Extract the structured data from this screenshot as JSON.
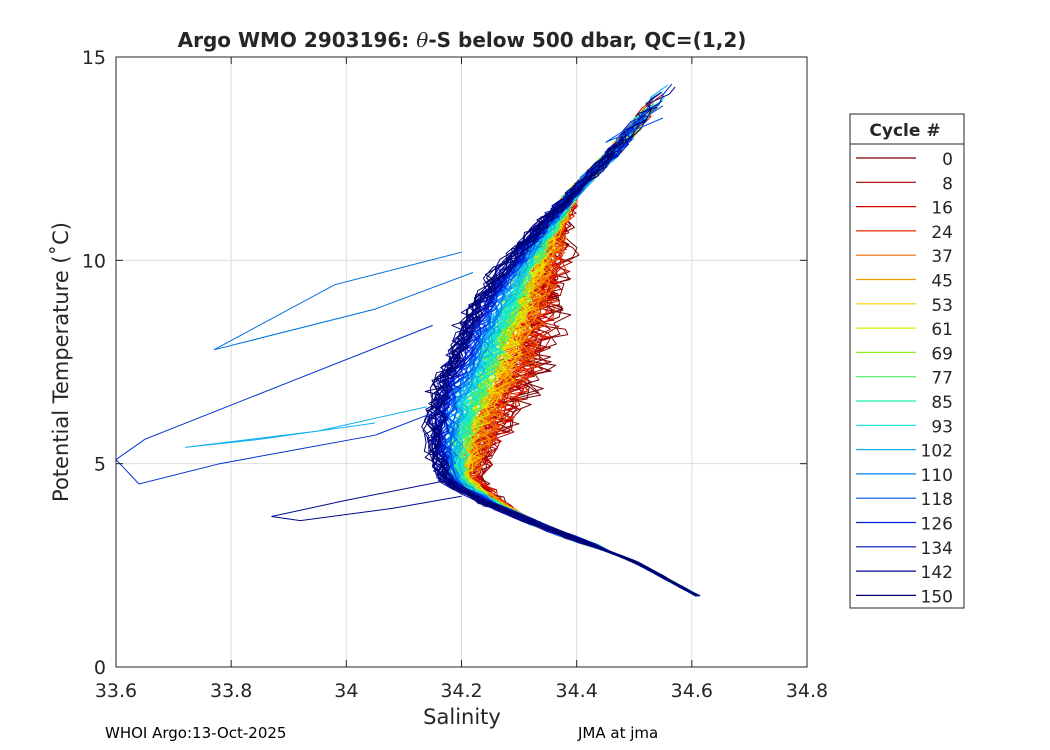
{
  "chart_data": {
    "type": "line",
    "title_prefix": "Argo WMO 2903196: ",
    "title_theta": "θ",
    "title_suffix": "-S below 500 dbar,  QC=(1,2)",
    "xlabel": "Salinity",
    "ylabel": "Potential Temperature (˚C)",
    "xlim": [
      33.6,
      34.8
    ],
    "ylim": [
      0,
      15
    ],
    "xticks": [
      33.6,
      33.8,
      34.0,
      34.2,
      34.4,
      34.6,
      34.8
    ],
    "xtick_labels": [
      "33.6",
      "33.8",
      "34",
      "34.2",
      "34.4",
      "34.6",
      "34.8"
    ],
    "yticks": [
      0,
      5,
      10,
      15
    ],
    "ytick_labels": [
      "0",
      "5",
      "10",
      "15"
    ],
    "grid": true,
    "legend": {
      "title": "Cycle #",
      "placement": "right-outside",
      "entries": [
        {
          "label": "0",
          "color": "#7a0000"
        },
        {
          "label": "8",
          "color": "#a80000"
        },
        {
          "label": "16",
          "color": "#d40000"
        },
        {
          "label": "24",
          "color": "#e83000"
        },
        {
          "label": "37",
          "color": "#f06a00"
        },
        {
          "label": "45",
          "color": "#f59a00"
        },
        {
          "label": "53",
          "color": "#f5d000"
        },
        {
          "label": "61",
          "color": "#d8f000"
        },
        {
          "label": "69",
          "color": "#90f020"
        },
        {
          "label": "77",
          "color": "#40f060"
        },
        {
          "label": "85",
          "color": "#20f0b0"
        },
        {
          "label": "93",
          "color": "#10e0e0"
        },
        {
          "label": "102",
          "color": "#10b0f0"
        },
        {
          "label": "110",
          "color": "#0080f0"
        },
        {
          "label": "118",
          "color": "#0050f0"
        },
        {
          "label": "126",
          "color": "#0020e0"
        },
        {
          "label": "134",
          "color": "#0010b0"
        },
        {
          "label": "142",
          "color": "#000a90"
        },
        {
          "label": "150",
          "color": "#000070"
        }
      ]
    },
    "series_profile": {
      "description_values": "approximate theta-S envelope, salinity (PSU) by potential temperature (deg C)",
      "deep_end": [
        34.61,
        1.75
      ],
      "core_path": [
        [
          34.61,
          1.75
        ],
        [
          34.5,
          2.6
        ],
        [
          34.35,
          3.4
        ],
        [
          34.25,
          4.0
        ],
        [
          34.18,
          4.6
        ],
        [
          34.17,
          5.5
        ],
        [
          34.18,
          6.5
        ],
        [
          34.21,
          7.5
        ],
        [
          34.24,
          8.6
        ],
        [
          34.28,
          9.6
        ],
        [
          34.33,
          10.6
        ],
        [
          34.39,
          11.6
        ],
        [
          34.46,
          12.6
        ],
        [
          34.52,
          13.6
        ],
        [
          34.56,
          14.3
        ]
      ],
      "warm_salty_offset_by_cycle": [
        0.11,
        0.1,
        0.09,
        0.09,
        0.08,
        0.07,
        0.06,
        0.05,
        0.045,
        0.04,
        0.035,
        0.03,
        0.02,
        0.01,
        0.0,
        -0.01,
        -0.02,
        -0.025,
        -0.03
      ],
      "fresh_intrusions": [
        [
          [
            34.2,
            10.2
          ],
          [
            33.98,
            9.4
          ],
          [
            33.77,
            7.8
          ],
          [
            34.05,
            8.8
          ],
          [
            34.22,
            9.7
          ]
        ],
        [
          [
            34.15,
            8.4
          ],
          [
            33.9,
            7.0
          ],
          [
            33.65,
            5.6
          ],
          [
            33.6,
            5.1
          ],
          [
            33.64,
            4.5
          ],
          [
            33.78,
            5.0
          ],
          [
            34.05,
            5.7
          ],
          [
            34.16,
            6.3
          ]
        ],
        [
          [
            34.14,
            6.4
          ],
          [
            33.95,
            5.8
          ],
          [
            33.72,
            5.4
          ],
          [
            33.85,
            5.6
          ],
          [
            34.05,
            6.0
          ]
        ],
        [
          [
            34.18,
            4.6
          ],
          [
            34.0,
            4.1
          ],
          [
            33.87,
            3.7
          ],
          [
            33.92,
            3.6
          ],
          [
            34.08,
            3.9
          ],
          [
            34.2,
            4.2
          ]
        ],
        [
          [
            34.55,
            13.8
          ],
          [
            34.45,
            12.9
          ],
          [
            34.55,
            13.5
          ]
        ]
      ]
    }
  },
  "footer": {
    "left": "WHOI Argo:13-Oct-2025",
    "right": "JMA at jma"
  }
}
